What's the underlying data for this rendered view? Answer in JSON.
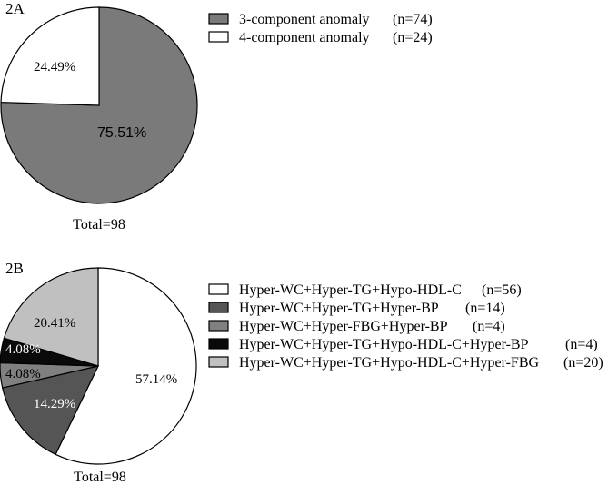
{
  "chart_data": [
    {
      "type": "pie",
      "panel_label": "2A",
      "slices": [
        {
          "label": "3-component anomaly",
          "count_label": "(n=74)",
          "value": 74,
          "percent_label": "75.51%",
          "color": "#7a7a7a",
          "text_color": "#000000"
        },
        {
          "label": "4-component anomaly",
          "count_label": "(n=24)",
          "value": 24,
          "percent_label": "24.49%",
          "color": "#ffffff",
          "text_color": "#000000"
        }
      ],
      "total_label": "Total=98",
      "legend_position": "right"
    },
    {
      "type": "pie",
      "panel_label": "2B",
      "slices": [
        {
          "label": "Hyper-WC+Hyper-TG+Hypo-HDL-C",
          "count_label": "(n=56)",
          "value": 56,
          "percent_label": "57.14%",
          "color": "#ffffff",
          "text_color": "#000000"
        },
        {
          "label": "Hyper-WC+Hyper-TG+Hyper-BP",
          "count_label": "(n=14)",
          "value": 14,
          "percent_label": "14.29%",
          "color": "#555555",
          "text_color": "#ffffff"
        },
        {
          "label": "Hyper-WC+Hyper-FBG+Hyper-BP",
          "count_label": "(n=4)",
          "value": 4,
          "percent_label": "4.08%",
          "color": "#808080",
          "text_color": "#000000"
        },
        {
          "label": "Hyper-WC+Hyper-TG+Hypo-HDL-C+Hyper-BP",
          "count_label": "(n=4)",
          "value": 4,
          "percent_label": "4.08%",
          "color": "#0a0a0a",
          "text_color": "#ffffff"
        },
        {
          "label": "Hyper-WC+Hyper-TG+Hypo-HDL-C+Hyper-FBG",
          "count_label": "(n=20)",
          "value": 20,
          "percent_label": "20.41%",
          "color": "#c0c0c0",
          "text_color": "#000000"
        }
      ],
      "total_label": "Total=98",
      "legend_position": "right"
    }
  ]
}
